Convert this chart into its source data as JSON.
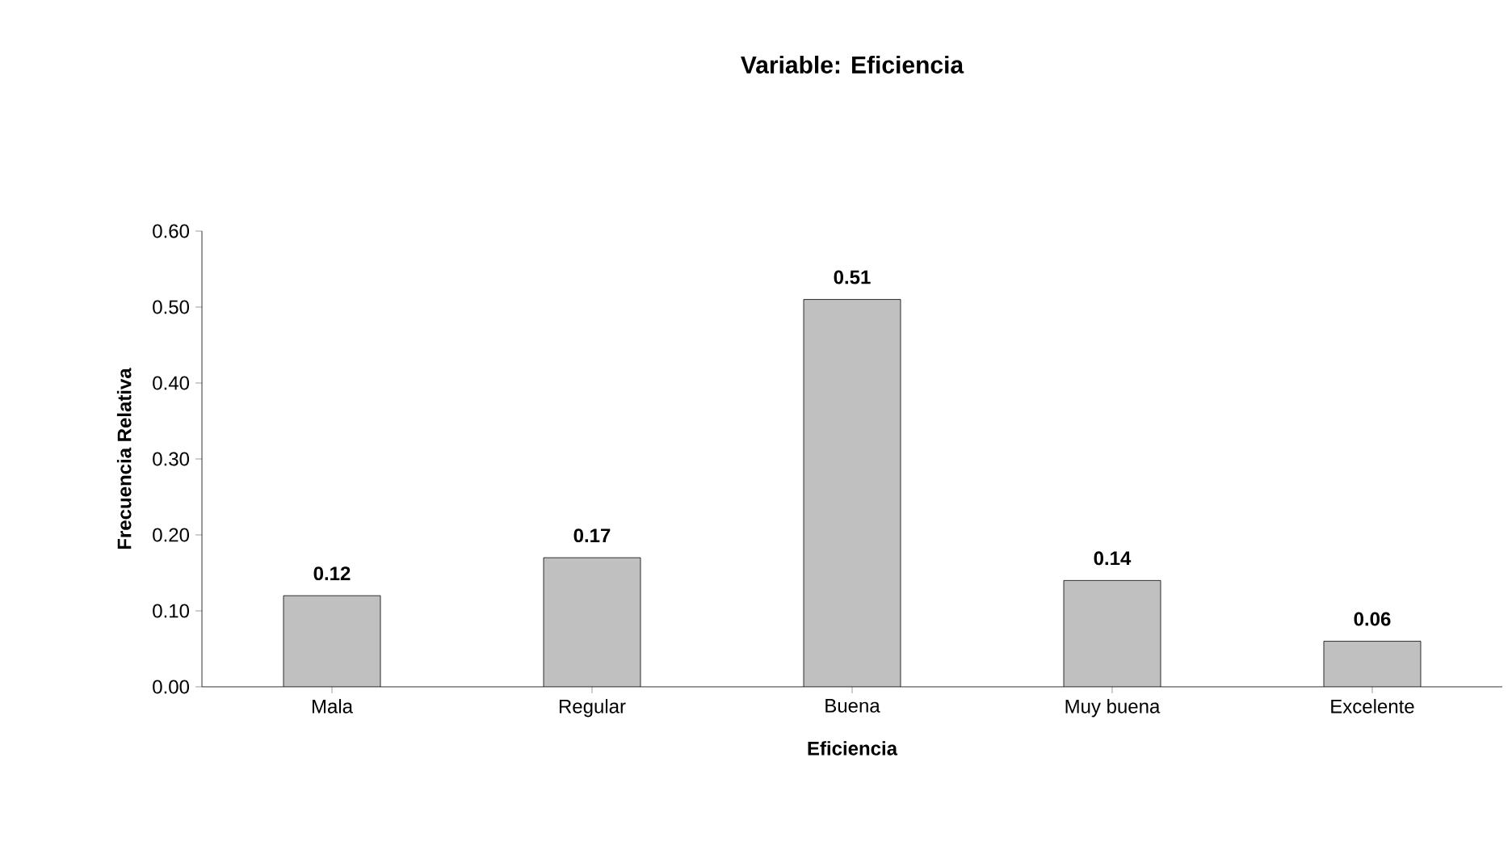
{
  "chart_data": {
    "type": "bar",
    "title": "Variable: Eficiencia",
    "xlabel": "Eficiencia",
    "ylabel": "Frecuencia Relativa",
    "categories": [
      "Mala",
      "Regular",
      "Buena",
      "Muy buena",
      "Excelente"
    ],
    "values": [
      0.12,
      0.17,
      0.51,
      0.14,
      0.06
    ],
    "color": "#c0c0c0",
    "ylim": [
      0,
      0.6
    ],
    "yticks": [
      {
        "value": 0,
        "label": "0.00"
      },
      {
        "value": 0.1,
        "label": "0.10"
      },
      {
        "value": 0.2,
        "label": "0.20"
      },
      {
        "value": 0.3,
        "label": "0.30"
      },
      {
        "value": 0.4,
        "label": "0.40"
      },
      {
        "value": 0.5,
        "label": "0.50"
      },
      {
        "value": 0.6,
        "label": "0.60"
      }
    ],
    "data_labels": true,
    "grid": false
  }
}
